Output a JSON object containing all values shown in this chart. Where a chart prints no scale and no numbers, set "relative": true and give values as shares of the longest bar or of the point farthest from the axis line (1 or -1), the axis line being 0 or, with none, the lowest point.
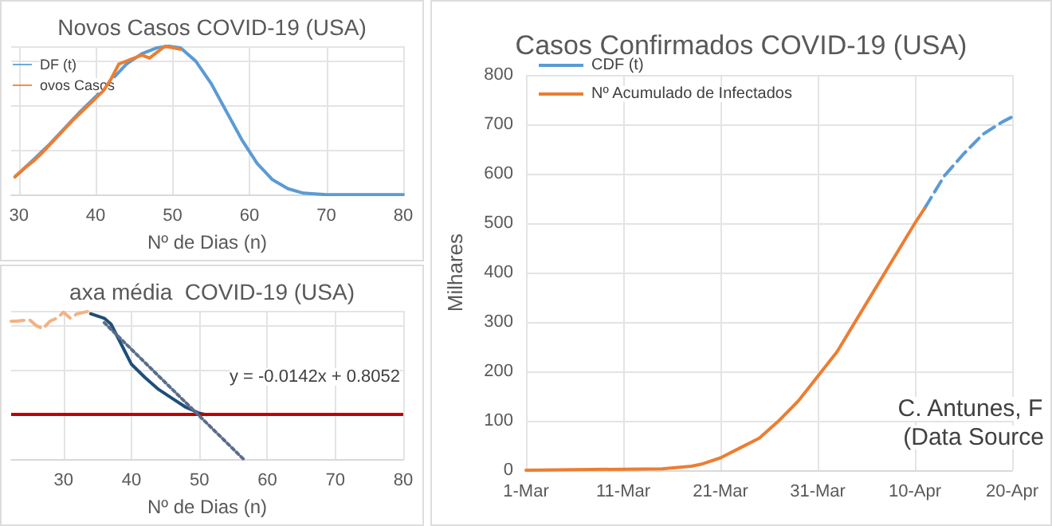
{
  "chart_data": [
    {
      "type": "line",
      "title": "Novos Casos COVID-19 (USA)",
      "xlabel": "Nº de Dias (n)",
      "relative": true,
      "xlim": [
        29,
        80
      ],
      "xticks": [
        30,
        40,
        50,
        60,
        70,
        80
      ],
      "grid": true,
      "legend": "top left",
      "marker": "none",
      "series": [
        {
          "name": "DF (t)",
          "color": "#5b9bd5",
          "x": [
            29.5,
            32,
            34,
            36,
            38,
            40,
            42,
            44,
            46,
            48,
            49.5,
            51,
            53,
            55,
            57,
            59,
            61,
            63,
            65,
            67,
            70,
            75,
            80
          ],
          "values": [
            0.12,
            0.24,
            0.34,
            0.45,
            0.56,
            0.66,
            0.77,
            0.88,
            0.95,
            0.99,
            1,
            0.99,
            0.9,
            0.75,
            0.56,
            0.37,
            0.21,
            0.1,
            0.04,
            0.01,
            0,
            0,
            0
          ]
        },
        {
          "name": "ovos Casos",
          "color": "#ed7d31",
          "x": [
            29.5,
            31,
            32,
            33,
            35,
            37,
            39,
            41,
            42,
            43,
            44,
            46,
            47,
            48,
            49,
            50,
            51
          ],
          "values": [
            0.12,
            0.19,
            0.23,
            0.28,
            0.39,
            0.5,
            0.6,
            0.7,
            0.78,
            0.88,
            0.9,
            0.94,
            0.92,
            0.96,
            1,
            0.99,
            0.98
          ]
        }
      ]
    },
    {
      "type": "line",
      "title": "axa média  COVID-19 (USA)",
      "xlabel": "Nº de Dias (n)",
      "relative": true,
      "xlim": [
        22.3,
        80
      ],
      "xticks": [
        30,
        40,
        50,
        60,
        70,
        80
      ],
      "grid": true,
      "marker": "none",
      "annotations": [
        "y = -0.0142x + 0.8052"
      ],
      "ref_lines": [
        {
          "axis": "y",
          "value": 0.3,
          "color": "#c00000"
        }
      ],
      "series": [
        {
          "color": "#f4b183",
          "line_style": "dashed",
          "x": [
            22.3,
            23,
            25,
            26,
            27,
            28,
            29,
            30,
            31,
            32,
            33,
            34
          ],
          "values": [
            0.93,
            0.93,
            0.94,
            0.9,
            0.88,
            0.93,
            0.95,
            0.99,
            0.95,
            0.98,
            0.99,
            1
          ]
        },
        {
          "color": "#1f4e79",
          "x": [
            34,
            36,
            37,
            38,
            39,
            40,
            42,
            44,
            46,
            48,
            50,
            51
          ],
          "values": [
            0.98,
            0.95,
            0.91,
            0.82,
            0.73,
            0.64,
            0.55,
            0.47,
            0.41,
            0.35,
            0.31,
            0.3
          ]
        },
        {
          "color": "#5a6e8c",
          "line_style": "dotted",
          "x": [
            36,
            56.5
          ],
          "values": [
            0.92,
            0
          ]
        }
      ]
    },
    {
      "type": "line",
      "title": "Casos Confirmados COVID-19 (USA)",
      "ylabel": "Milhares",
      "xlim": [
        "--03-01",
        "--04-20"
      ],
      "xticks": [
        {
          "value": "--03-01",
          "label": "1-Mar"
        },
        {
          "value": "--03-11",
          "label": "11-Mar"
        },
        {
          "value": "--03-21",
          "label": "21-Mar"
        },
        {
          "value": "--03-31",
          "label": "31-Mar"
        },
        {
          "value": "--04-10",
          "label": "10-Apr"
        },
        {
          "value": "--04-20",
          "label": "20-Apr"
        }
      ],
      "ylim": [
        0,
        800
      ],
      "yticks": [
        0,
        100,
        200,
        300,
        400,
        500,
        600,
        700,
        800
      ],
      "grid": true,
      "legend": "top left",
      "marker": "none",
      "annotations": [
        "C. Antunes, F",
        "(Data Source"
      ],
      "series": [
        {
          "name": "CDF (t)",
          "color": "#5b9bd5",
          "line_style": "dashed",
          "x": [
            "--04-11",
            "--04-13",
            "--04-15",
            "--04-17",
            "--04-19",
            "--04-20"
          ],
          "values": [
            530,
            595,
            640,
            680,
            705,
            715
          ]
        },
        {
          "name": "Nº Acumulado de Infectados",
          "color": "#ed7d31",
          "x": [
            "--03-01",
            "--03-15",
            "--03-18",
            "--03-19",
            "--03-21",
            "--03-23",
            "--03-25",
            "--03-27",
            "--03-29",
            "--03-31",
            "--04-02",
            "--04-04",
            "--04-06",
            "--04-08",
            "--04-10",
            "--04-11"
          ],
          "values": [
            0,
            3,
            8,
            12,
            25,
            45,
            65,
            100,
            140,
            190,
            240,
            305,
            370,
            435,
            500,
            530
          ]
        }
      ]
    }
  ]
}
